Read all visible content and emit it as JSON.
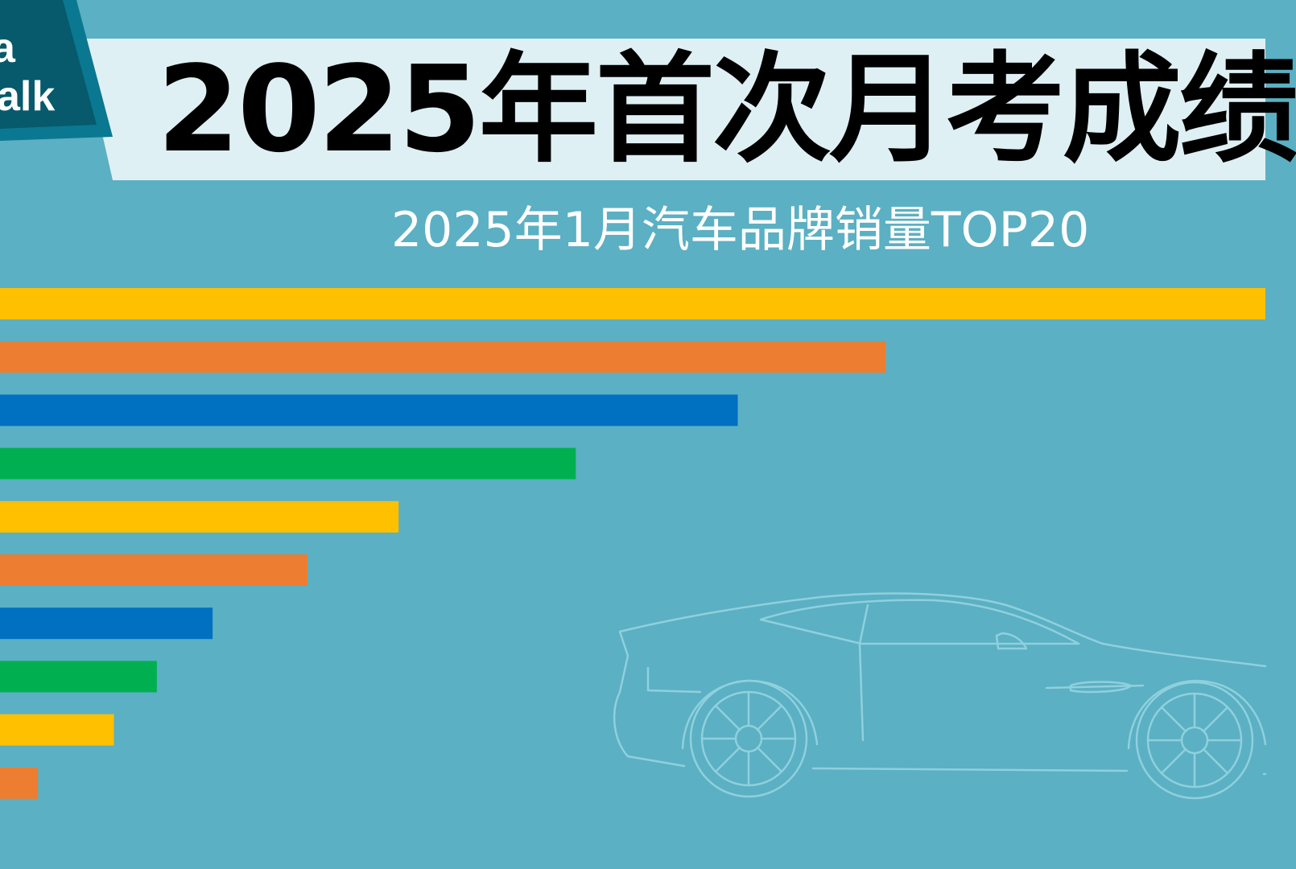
{
  "header": {
    "logo_line_1": "a",
    "logo_line_2": "alk",
    "title": "2025年首次月考成绩",
    "subtitle": "2025年1月汽车品牌销量TOP20"
  },
  "colors": {
    "background": "#5BB0C3",
    "title_band": "#DFF0F4",
    "logo_dark": "#065A6C",
    "logo_edge": "#0A7890",
    "car_outline": "#8FD0DE",
    "bar_yellow": "#FFC000",
    "bar_orange": "#ED7D31",
    "bar_blue": "#0070C0",
    "bar_green": "#00B050"
  },
  "icons": [
    "car-outline-illustration"
  ],
  "chart_data": {
    "type": "bar",
    "orientation": "horizontal",
    "title": "2025年1月汽车品牌销量TOP20",
    "xlabel": "",
    "ylabel": "",
    "grid": false,
    "legend": "none",
    "series": [
      {
        "values": [
          100,
          70,
          58.3,
          45.5,
          31.5,
          24.3,
          16.8,
          12.4,
          9,
          3
        ]
      }
    ],
    "bar_colors": [
      "#FFC000",
      "#ED7D31",
      "#0070C0",
      "#00B050",
      "#FFC000",
      "#ED7D31",
      "#0070C0",
      "#00B050",
      "#FFC000",
      "#ED7D31"
    ]
  }
}
